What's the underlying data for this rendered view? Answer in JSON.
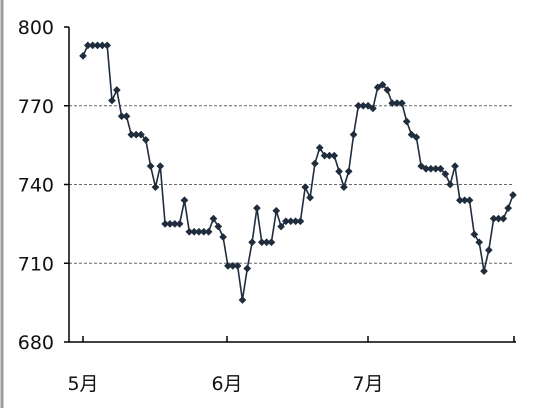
{
  "chart_data": {
    "type": "line",
    "title": "",
    "xlabel": "",
    "ylabel": "",
    "ylim": [
      680,
      800
    ],
    "y_ticks": [
      680,
      710,
      740,
      770,
      800
    ],
    "x_tick_labels": [
      "5月",
      "6月",
      "7月"
    ],
    "grid": "horizontal dashed at 710, 740, 770",
    "series": [
      {
        "marker": "diamond",
        "color": "#1f2d3d",
        "values": [
          789,
          793,
          793,
          793,
          793,
          793,
          772,
          776,
          766,
          766,
          759,
          759,
          759,
          757,
          747,
          739,
          747,
          725,
          725,
          725,
          725,
          734,
          722,
          722,
          722,
          722,
          722,
          727,
          724,
          720,
          709,
          709,
          709,
          696,
          708,
          718,
          731,
          718,
          718,
          718,
          730,
          724,
          726,
          726,
          726,
          726,
          739,
          735,
          748,
          754,
          751,
          751,
          751,
          745,
          739,
          745,
          759,
          770,
          770,
          770,
          769,
          777,
          778,
          776,
          771,
          771,
          771,
          764,
          759,
          758,
          747,
          746,
          746,
          746,
          746,
          744,
          740,
          747,
          734,
          734,
          734,
          721,
          718,
          707,
          715,
          727,
          727,
          727,
          731,
          736
        ]
      }
    ]
  }
}
